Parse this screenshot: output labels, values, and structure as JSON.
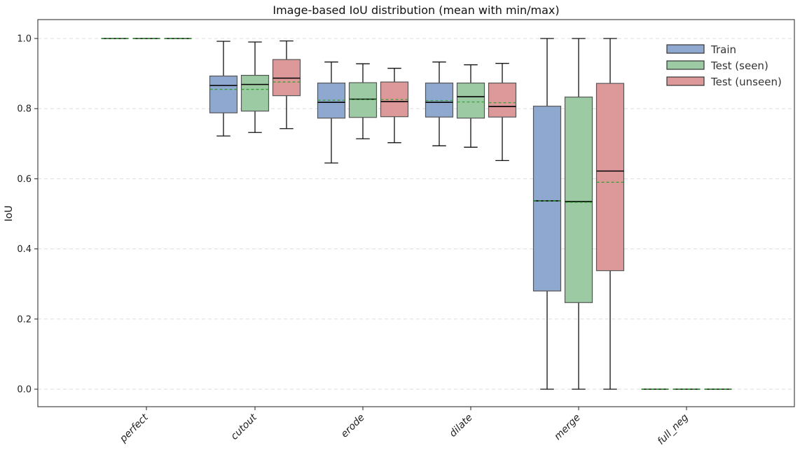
{
  "chart_data": {
    "type": "box",
    "title": "Image-based IoU distribution (mean with min/max)",
    "xlabel": "",
    "ylabel": "IoU",
    "ylim": [
      -0.05,
      1.05
    ],
    "yticks": [
      0.0,
      0.2,
      0.4,
      0.6,
      0.8,
      1.0
    ],
    "ytick_labels": [
      "0.0",
      "0.2",
      "0.4",
      "0.6",
      "0.8",
      "1.0"
    ],
    "grid": "y-dashed",
    "legend_position": "top-right",
    "categories": [
      "perfect",
      "cutout",
      "erode",
      "dilate",
      "merge",
      "full_neg"
    ],
    "series": [
      {
        "name": "Train",
        "color": "#8fa8cf",
        "boxes": [
          {
            "min": 1.0,
            "q1": 1.0,
            "median": 1.0,
            "mean": 1.0,
            "q3": 1.0,
            "max": 1.0
          },
          {
            "min": 0.722,
            "q1": 0.788,
            "median": 0.866,
            "mean": 0.855,
            "q3": 0.893,
            "max": 0.992
          },
          {
            "min": 0.645,
            "q1": 0.773,
            "median": 0.818,
            "mean": 0.824,
            "q3": 0.873,
            "max": 0.933
          },
          {
            "min": 0.694,
            "q1": 0.776,
            "median": 0.818,
            "mean": 0.823,
            "q3": 0.873,
            "max": 0.933
          },
          {
            "min": 0.0,
            "q1": 0.28,
            "median": 0.537,
            "mean": 0.537,
            "q3": 0.807,
            "max": 1.0
          },
          {
            "min": 0.0,
            "q1": 0.0,
            "median": 0.0,
            "mean": 0.0,
            "q3": 0.0,
            "max": 0.0
          }
        ]
      },
      {
        "name": "Test (seen)",
        "color": "#9ccba3",
        "boxes": [
          {
            "min": 1.0,
            "q1": 1.0,
            "median": 1.0,
            "mean": 1.0,
            "q3": 1.0,
            "max": 1.0
          },
          {
            "min": 0.732,
            "q1": 0.793,
            "median": 0.869,
            "mean": 0.855,
            "q3": 0.895,
            "max": 0.99
          },
          {
            "min": 0.714,
            "q1": 0.775,
            "median": 0.827,
            "mean": 0.826,
            "q3": 0.874,
            "max": 0.928
          },
          {
            "min": 0.69,
            "q1": 0.773,
            "median": 0.834,
            "mean": 0.819,
            "q3": 0.873,
            "max": 0.925
          },
          {
            "min": 0.0,
            "q1": 0.247,
            "median": 0.535,
            "mean": 0.533,
            "q3": 0.833,
            "max": 1.0
          },
          {
            "min": 0.0,
            "q1": 0.0,
            "median": 0.0,
            "mean": 0.0,
            "q3": 0.0,
            "max": 0.0
          }
        ]
      },
      {
        "name": "Test (unseen)",
        "color": "#dd9999",
        "boxes": [
          {
            "min": 1.0,
            "q1": 1.0,
            "median": 1.0,
            "mean": 1.0,
            "q3": 1.0,
            "max": 1.0
          },
          {
            "min": 0.743,
            "q1": 0.837,
            "median": 0.887,
            "mean": 0.876,
            "q3": 0.94,
            "max": 0.993
          },
          {
            "min": 0.703,
            "q1": 0.777,
            "median": 0.82,
            "mean": 0.826,
            "q3": 0.876,
            "max": 0.915
          },
          {
            "min": 0.652,
            "q1": 0.776,
            "median": 0.806,
            "mean": 0.817,
            "q3": 0.873,
            "max": 0.929
          },
          {
            "min": 0.0,
            "q1": 0.338,
            "median": 0.622,
            "mean": 0.59,
            "q3": 0.872,
            "max": 1.0
          },
          {
            "min": 0.0,
            "q1": 0.0,
            "median": 0.0,
            "mean": 0.0,
            "q3": 0.0,
            "max": 0.0
          }
        ]
      }
    ],
    "median_color": "#000000",
    "mean_color": "#2ca02c",
    "mean_style": "dashed"
  }
}
